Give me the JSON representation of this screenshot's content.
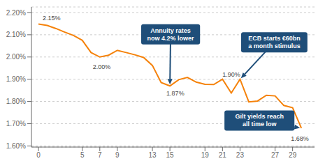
{
  "chart_data": {
    "type": "line",
    "x": [
      0,
      1,
      2,
      3,
      4,
      5,
      6,
      7,
      8,
      9,
      10,
      11,
      12,
      13,
      14,
      15,
      16,
      17,
      18,
      19,
      20,
      21,
      22,
      23,
      24,
      25,
      26,
      27,
      28,
      29,
      30
    ],
    "values": [
      2.148,
      2.142,
      2.128,
      2.112,
      2.097,
      2.075,
      2.02,
      2.0,
      2.008,
      2.03,
      2.02,
      2.01,
      1.998,
      1.962,
      1.885,
      1.87,
      1.898,
      1.908,
      1.887,
      1.877,
      1.876,
      1.9,
      1.838,
      1.9,
      1.798,
      1.802,
      1.828,
      1.825,
      1.782,
      1.772,
      1.68
    ],
    "color": "#F5820A",
    "xlim": [
      -0.8,
      31.5
    ],
    "ylim": [
      1.595,
      2.225
    ],
    "xticks": [
      0,
      5,
      7,
      9,
      13,
      15,
      19,
      21,
      23,
      27,
      29
    ],
    "yticks": [
      {
        "value": 1.6,
        "label": "1.60%"
      },
      {
        "value": 1.7,
        "label": "1.70%"
      },
      {
        "value": 1.8,
        "label": "1.80%"
      },
      {
        "value": 1.9,
        "label": "1.90%"
      },
      {
        "value": 2.0,
        "label": "2.00%"
      },
      {
        "value": 2.1,
        "label": "2.10%"
      },
      {
        "value": 2.2,
        "label": "2.20%"
      }
    ],
    "grid": "y",
    "annotations": [
      {
        "text": "2.15%",
        "x": 0
      },
      {
        "text": "2.00%",
        "x": 7
      },
      {
        "text": "1.87%",
        "x": 15
      },
      {
        "text": "1.90%",
        "x": 21
      },
      {
        "text": "1.68%",
        "x": 30
      }
    ],
    "callouts": [
      {
        "text": "Annuity rates\nnow 4.2% lower",
        "x": 15,
        "color": "#1F4E79"
      },
      {
        "text": "ECB starts €60bn\na month stimulus",
        "x": 23,
        "color": "#1F4E79"
      },
      {
        "text": "Gilt yields reach\nall time low",
        "x": 30,
        "color": "#1F4E79"
      }
    ]
  }
}
